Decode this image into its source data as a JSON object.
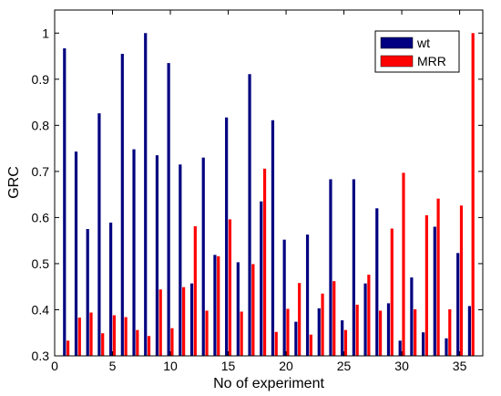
{
  "chart_data": {
    "type": "bar",
    "xlabel": "No of experiment",
    "ylabel": "GRC",
    "xlim": [
      0,
      37
    ],
    "ylim": [
      0.3,
      1.05
    ],
    "xticks": [
      0,
      5,
      10,
      15,
      20,
      25,
      30,
      35
    ],
    "yticks": [
      0.3,
      0.4,
      0.5,
      0.6,
      0.7,
      0.8,
      0.9,
      1
    ],
    "grid": false,
    "legend_position": "top-right",
    "x": [
      1,
      2,
      3,
      4,
      5,
      6,
      7,
      8,
      9,
      10,
      11,
      12,
      13,
      14,
      15,
      16,
      17,
      18,
      19,
      20,
      21,
      22,
      23,
      24,
      25,
      26,
      27,
      28,
      29,
      30,
      31,
      32,
      33,
      34,
      35,
      36
    ],
    "series": [
      {
        "name": "wt",
        "color": "#000080",
        "values": [
          0.967,
          0.743,
          0.575,
          0.826,
          0.589,
          0.955,
          0.748,
          1.0,
          0.735,
          0.935,
          0.715,
          0.457,
          0.73,
          0.519,
          0.817,
          0.503,
          0.911,
          0.635,
          0.811,
          0.552,
          0.374,
          0.563,
          0.403,
          0.683,
          0.377,
          0.683,
          0.457,
          0.62,
          0.414,
          0.333,
          0.47,
          0.351,
          0.58,
          0.338,
          0.523,
          0.408
        ]
      },
      {
        "name": "MRR",
        "color": "#ff0000",
        "values": [
          0.333,
          0.383,
          0.394,
          0.349,
          0.388,
          0.384,
          0.356,
          0.343,
          0.444,
          0.36,
          0.449,
          0.581,
          0.398,
          0.516,
          0.596,
          0.396,
          0.499,
          0.706,
          0.352,
          0.402,
          0.458,
          0.346,
          0.435,
          0.462,
          0.356,
          0.411,
          0.476,
          0.398,
          0.576,
          0.697,
          0.401,
          0.605,
          0.641,
          0.401,
          0.626,
          1.0
        ]
      }
    ]
  }
}
